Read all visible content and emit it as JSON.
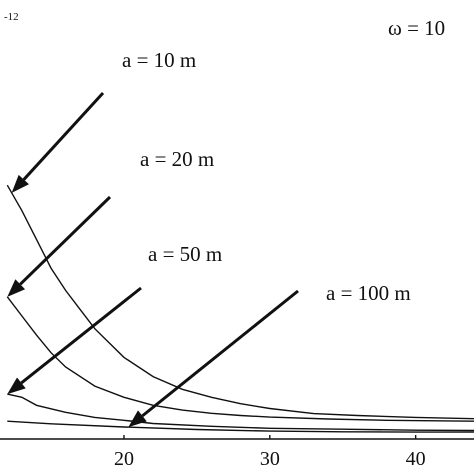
{
  "chart_data": {
    "type": "line",
    "title": "",
    "xlabel": "",
    "ylabel": "",
    "x_ticks": [
      "20",
      "30",
      "40"
    ],
    "xlim": [
      11.5,
      44
    ],
    "ylim": [
      0,
      1
    ],
    "top_left_fragment": "-12",
    "top_right_fragment": "ω = 10",
    "series": [
      {
        "name": "a = 10 m",
        "x": [
          12,
          13,
          14,
          15,
          16,
          17,
          18,
          20,
          22,
          24,
          26,
          28,
          30,
          33,
          36,
          40,
          44
        ],
        "values": [
          0.78,
          0.7,
          0.61,
          0.52,
          0.45,
          0.39,
          0.33,
          0.24,
          0.18,
          0.14,
          0.115,
          0.095,
          0.08,
          0.064,
          0.058,
          0.052,
          0.048
        ]
      },
      {
        "name": "a = 20 m",
        "x": [
          12,
          13,
          14,
          15,
          16,
          18,
          20,
          22,
          24,
          26,
          28,
          30,
          34,
          38,
          44
        ],
        "values": [
          0.43,
          0.37,
          0.31,
          0.255,
          0.21,
          0.15,
          0.115,
          0.09,
          0.075,
          0.065,
          0.058,
          0.053,
          0.047,
          0.043,
          0.04
        ]
      },
      {
        "name": "a = 50 m",
        "x": [
          12,
          13,
          14,
          16,
          18,
          20,
          22,
          26,
          30,
          35,
          40,
          44
        ],
        "values": [
          0.125,
          0.115,
          0.09,
          0.068,
          0.052,
          0.043,
          0.033,
          0.024,
          0.018,
          0.015,
          0.012,
          0.011
        ]
      },
      {
        "name": "a = 100 m",
        "x": [
          12,
          15,
          20,
          25,
          30,
          35,
          40,
          44
        ],
        "values": [
          0.04,
          0.032,
          0.022,
          0.014,
          0.009,
          0.007,
          0.006,
          0.006
        ]
      }
    ],
    "annotations": [
      {
        "text": "a = 10 m",
        "series": 0,
        "target_x": 12.3
      },
      {
        "text": "a = 20 m",
        "series": 1,
        "target_x": 12.0
      },
      {
        "text": "a = 50 m",
        "series": 2,
        "target_x": 12.0
      },
      {
        "text": "a = 100 m",
        "series": 3,
        "target_x": 20.3
      }
    ],
    "grid": false,
    "legend": "none"
  }
}
